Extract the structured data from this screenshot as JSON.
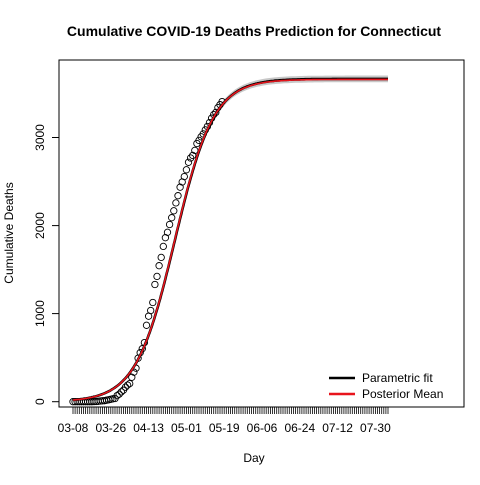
{
  "chart_data": {
    "type": "line",
    "title": "Cumulative COVID-19 Deaths Prediction for Connecticut",
    "xlabel": "Day",
    "ylabel": "Cumulative Deaths",
    "x_tick_labels": [
      "03-08",
      "03-26",
      "04-13",
      "05-01",
      "05-19",
      "06-06",
      "06-24",
      "07-12",
      "07-30"
    ],
    "x_tick_days": [
      0,
      18,
      36,
      54,
      72,
      90,
      108,
      126,
      144
    ],
    "x_range_days": [
      0,
      150
    ],
    "y_ticks": [
      0,
      1000,
      2000,
      3000
    ],
    "ylim": [
      -60,
      3880
    ],
    "grid": false,
    "legend_position": "bottom-right",
    "series": [
      {
        "name": "Parametric fit",
        "type": "line",
        "color": "#000000",
        "model": {
          "K": 3666,
          "t0": 48.5,
          "r": 0.108
        }
      },
      {
        "name": "Posterior Mean",
        "type": "line",
        "color": "#e8141c",
        "model": {
          "K": 3660,
          "t0": 48.4,
          "r": 0.1085
        }
      }
    ],
    "band_color": "#c8c8c8",
    "observed_days": [
      0,
      1,
      2,
      3,
      4,
      5,
      6,
      7,
      8,
      9,
      10,
      11,
      12,
      13,
      14,
      15,
      16,
      17,
      18,
      19,
      20,
      21,
      22,
      23,
      24,
      25,
      26,
      27,
      28,
      29,
      30,
      31,
      32,
      33,
      34,
      35,
      36,
      37,
      38,
      39,
      40,
      41,
      42,
      43,
      44,
      45,
      46,
      47,
      48,
      49,
      50,
      51,
      52,
      53,
      54,
      55,
      56,
      57,
      58,
      59,
      60,
      61,
      62,
      63,
      64,
      65,
      66,
      67,
      68,
      69,
      70,
      71
    ],
    "observed_values": [
      0,
      0,
      0,
      0,
      0,
      0,
      0,
      0,
      0,
      0,
      1,
      3,
      5,
      8,
      10,
      12,
      17,
      22,
      27,
      33,
      36,
      69,
      85,
      112,
      131,
      165,
      189,
      206,
      277,
      335,
      380,
      494,
      557,
      602,
      671,
      868,
      971,
      1036,
      1127,
      1331,
      1423,
      1544,
      1639,
      1764,
      1862,
      1924,
      2012,
      2089,
      2168,
      2257,
      2339,
      2436,
      2495,
      2556,
      2633,
      2718,
      2767,
      2797,
      2854,
      2932,
      2967,
      3008,
      3041,
      3086,
      3125,
      3169,
      3219,
      3260,
      3285,
      3339,
      3372,
      3408
    ]
  }
}
